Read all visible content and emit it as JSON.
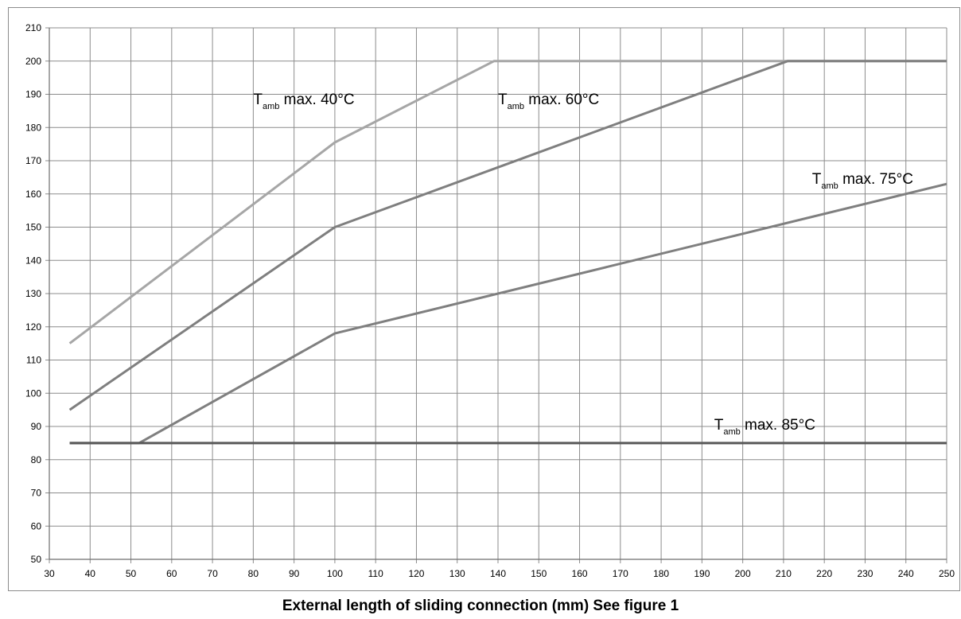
{
  "chart_data": {
    "type": "line",
    "xlabel": "External length of sliding connection (mm) See figure 1",
    "ylabel": "",
    "title": "",
    "xlim": [
      30,
      250
    ],
    "ylim": [
      50,
      210
    ],
    "x_ticks": [
      30,
      40,
      50,
      60,
      70,
      80,
      90,
      100,
      110,
      120,
      130,
      140,
      150,
      160,
      170,
      180,
      190,
      200,
      210,
      220,
      230,
      240,
      250
    ],
    "y_ticks": [
      50,
      60,
      70,
      80,
      90,
      100,
      110,
      120,
      130,
      140,
      150,
      160,
      170,
      180,
      190,
      200,
      210
    ],
    "grid": true,
    "series": [
      {
        "key": "t40",
        "color": "#a6a6a6",
        "x": [
          35,
          100,
          139,
          250
        ],
        "y": [
          115,
          175.5,
          200,
          200
        ],
        "label": {
          "T": "T",
          "sub": "amb",
          "rest": " max. 40°C",
          "at": [
            80,
            187
          ]
        }
      },
      {
        "key": "t60",
        "color": "#7f7f7f",
        "x": [
          35,
          100,
          211,
          250
        ],
        "y": [
          95,
          150,
          200,
          200
        ],
        "label": {
          "T": "T",
          "sub": "amb",
          "rest": " max. 60°C",
          "at": [
            140,
            187
          ]
        }
      },
      {
        "key": "t75",
        "color": "#7f7f7f",
        "x": [
          35,
          52,
          100,
          250
        ],
        "y": [
          85,
          85,
          118,
          163
        ],
        "label": {
          "T": "T",
          "sub": "amb",
          "rest": " max. 75°C",
          "at": [
            217,
            163
          ]
        }
      },
      {
        "key": "t85",
        "color": "#595959",
        "x": [
          35,
          250
        ],
        "y": [
          85,
          85
        ],
        "label": {
          "T": "T",
          "sub": "amb",
          "rest": " max. 85°C",
          "at": [
            193,
            89
          ]
        }
      }
    ]
  }
}
